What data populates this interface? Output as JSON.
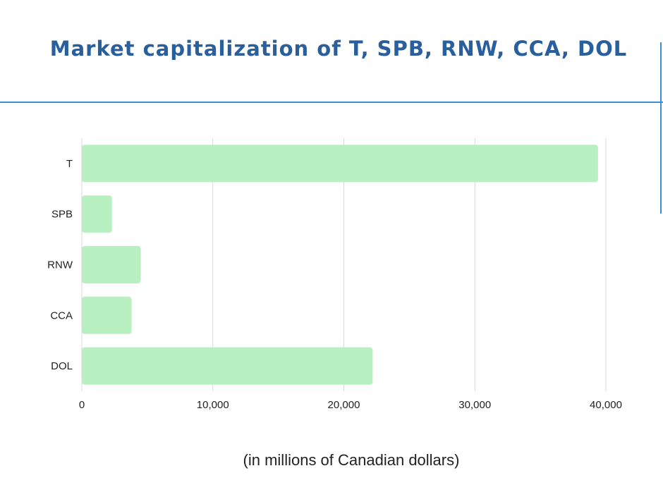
{
  "colors": {
    "title": "#2a5f9e",
    "rule": "#3a8fd1",
    "bar": "#b8f0c2",
    "grid": "#d9d9d9",
    "tick_text": "#222222"
  },
  "chart_data": {
    "type": "bar",
    "orientation": "horizontal",
    "title": "Market capitalization of T, SPB, RNW, CCA, DOL",
    "xlabel": "(in millions of Canadian dollars)",
    "ylabel": "",
    "categories": [
      "T",
      "SPB",
      "RNW",
      "CCA",
      "DOL"
    ],
    "values": [
      39400,
      2300,
      4500,
      3800,
      22200
    ],
    "xlim": [
      0,
      40000
    ],
    "xticks": [
      0,
      10000,
      20000,
      30000,
      40000
    ],
    "xtick_labels": [
      "0",
      "10,000",
      "20,000",
      "30,000",
      "40,000"
    ],
    "grid": "vertical",
    "legend": "none"
  }
}
